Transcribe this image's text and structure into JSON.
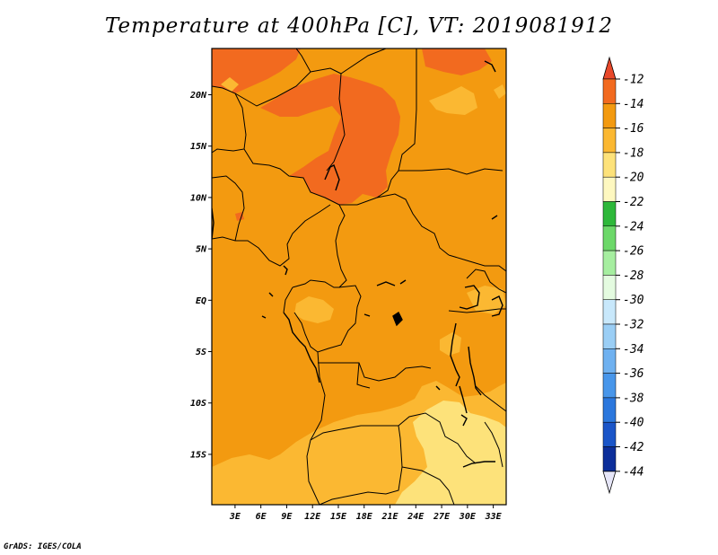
{
  "title": "Temperature at 400hPa [C], VT: 2019081912",
  "credit": "GrADS: IGES/COLA",
  "map": {
    "lat_labels": [
      "20N",
      "15N",
      "10N",
      "5N",
      "EQ",
      "5S",
      "10S",
      "15S"
    ],
    "lat_values": [
      20,
      15,
      10,
      5,
      0,
      -5,
      -10,
      -15
    ],
    "lon_labels": [
      "3E",
      "6E",
      "9E",
      "12E",
      "15E",
      "18E",
      "21E",
      "24E",
      "27E",
      "30E",
      "33E"
    ],
    "lon_values": [
      3,
      6,
      9,
      12,
      15,
      18,
      21,
      24,
      27,
      30,
      33
    ],
    "lat_range": [
      -19.9,
      24.5
    ],
    "lon_range": [
      0.3,
      34.5
    ],
    "dominant_band": "-16 to -14",
    "colors": {
      "c_-12_up": "#e8502a",
      "c_-14_-12": "#f26a1f",
      "c_-16_-14": "#f39a10",
      "c_-18_-16": "#fbb832",
      "c_-20_-18": "#fde27a"
    }
  },
  "colorbar": {
    "levels": [
      "-12",
      "-14",
      "-16",
      "-18",
      "-20",
      "-22",
      "-24",
      "-26",
      "-28",
      "-30",
      "-32",
      "-34",
      "-36",
      "-38",
      "-40",
      "-42",
      "-44"
    ],
    "colors": [
      "#e8482a",
      "#f26a1f",
      "#f39a10",
      "#fbb832",
      "#fde27a",
      "#fef8c0",
      "#2eb83a",
      "#6cd869",
      "#a6eea0",
      "#e4fbe0",
      "#c8e8fb",
      "#9acef5",
      "#6fb1f0",
      "#4896ea",
      "#2b77dd",
      "#1a55c8",
      "#0c2e9a",
      "#050a66",
      "#e6e6f8"
    ]
  }
}
